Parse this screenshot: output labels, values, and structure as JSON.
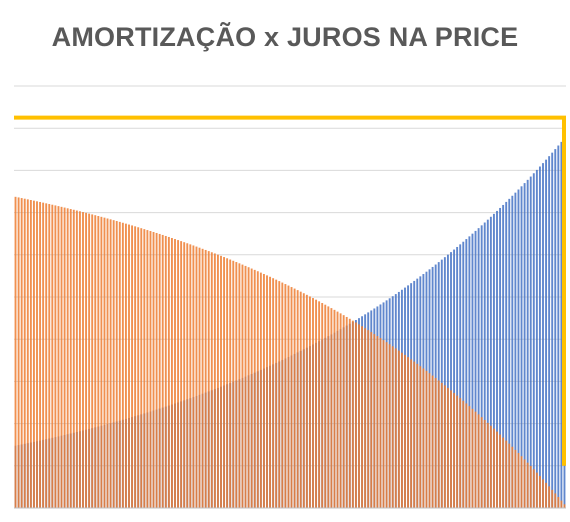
{
  "chart_data": {
    "type": "bar",
    "title": "AMORTIZAÇÃO x JUROS NA PRICE",
    "xlabel": "",
    "ylabel": "",
    "ylim": [
      0,
      100
    ],
    "grid": true,
    "legend": "none",
    "overlap": true,
    "periods": 180,
    "pmt": 88.5,
    "series": [
      {
        "id": "juros",
        "color": "#ED7D31"
      },
      {
        "id": "amortizacao",
        "color": "#4472C4"
      }
    ],
    "reference_line": {
      "value": 92.5,
      "color": "#FFC000"
    }
  }
}
